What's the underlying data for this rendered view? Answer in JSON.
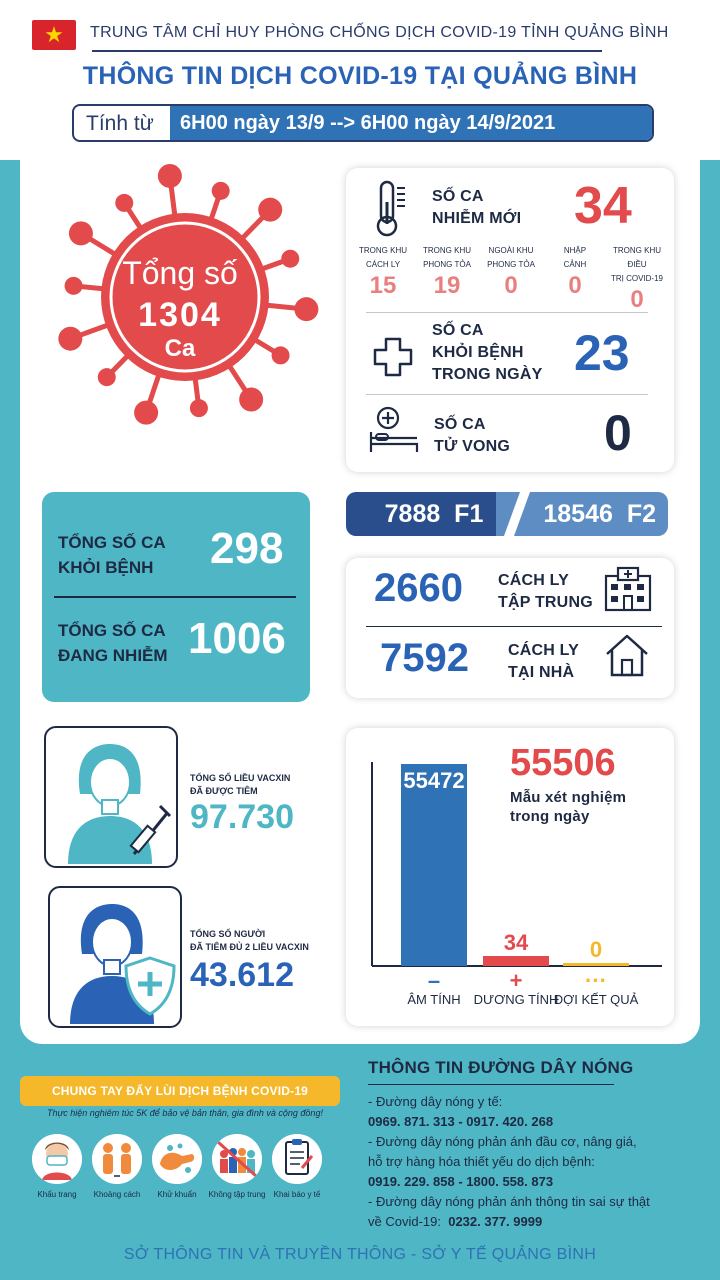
{
  "header": {
    "org": "TRUNG TÂM CHỈ HUY PHÒNG CHỐNG DỊCH COVID-19 TỈNH QUẢNG BÌNH",
    "title": "THÔNG TIN DỊCH COVID-19 TẠI QUẢNG BÌNH",
    "date_prefix": "Tính từ",
    "date_range": "6H00 ngày 13/9 --> 6H00 ngày 14/9/2021"
  },
  "total": {
    "label": "Tổng số",
    "value": "1304",
    "unit": "Ca"
  },
  "new_cases": {
    "label_line1": "SỐ CA",
    "label_line2": "NHIỄM MỚI",
    "value": "34",
    "breakdown": [
      {
        "head1": "TRONG KHU",
        "head2": "CÁCH LY",
        "value": "15"
      },
      {
        "head1": "TRONG KHU",
        "head2": "PHONG TỎA",
        "value": "19"
      },
      {
        "head1": "NGOÀI KHU",
        "head2": "PHONG TỎA",
        "value": "0"
      },
      {
        "head1": "NHẬP",
        "head2": "CẢNH",
        "value": "0"
      },
      {
        "head1": "TRONG KHU ĐIỀU",
        "head2": "TRỊ COVID-19",
        "value": "0"
      }
    ]
  },
  "recovered_today": {
    "line1": "SỐ CA",
    "line2": "KHỎI BỆNH",
    "line3": "TRONG NGÀY",
    "value": "23"
  },
  "deaths": {
    "line1": "SỐ CA",
    "line2": "TỬ VONG",
    "value": "0"
  },
  "contacts": {
    "f1_value": "7888",
    "f1_label": "F1",
    "f2_value": "18546",
    "f2_label": "F2"
  },
  "totals": {
    "recovered_line1": "TỔNG SỐ CA",
    "recovered_line2": "KHỎI BỆNH",
    "recovered_value": "298",
    "active_line1": "TỔNG SỐ CA",
    "active_line2": "ĐANG NHIỄM",
    "active_value": "1006"
  },
  "isolation": {
    "central_value": "2660",
    "central_line1": "CÁCH LY",
    "central_line2": "TẬP TRUNG",
    "home_value": "7592",
    "home_line1": "CÁCH LY",
    "home_line2": "TẠI NHÀ"
  },
  "vaccine": {
    "doses_line1": "TỔNG SỐ LIỀU VACXIN",
    "doses_line2": "ĐÃ ĐƯỢC TIÊM",
    "doses_value": "97.730",
    "full_line1": "TỔNG SỐ NGƯỜI",
    "full_line2": "ĐÃ TIÊM ĐỦ 2 LIỀU VACXIN",
    "full_value": "43.612"
  },
  "tests": {
    "total": "55506",
    "total_line1": "Mẫu xét nghiệm",
    "total_line2": "trong ngày"
  },
  "chart_data": {
    "type": "bar",
    "categories": [
      "ÂM TÍNH",
      "DƯƠNG TÍNH",
      "ĐỢI KẾT QUẢ"
    ],
    "values": [
      55472,
      34,
      0
    ],
    "symbols": [
      "–",
      "+",
      "···"
    ],
    "colors": [
      "#2f72b6",
      "#e24a4b",
      "#f5b82a"
    ]
  },
  "campaign": {
    "title": "CHUNG TAY ĐẨY LÙI DỊCH BỆNH COVID-19",
    "subtitle": "Thực hiện nghiêm túc 5K để bảo vệ bản thân, gia đình và cộng đồng!",
    "items": [
      "Khẩu trang",
      "Khoảng cách",
      "Khử khuẩn",
      "Không tập trung",
      "Khai báo y tế"
    ]
  },
  "hotline": {
    "title": "THÔNG TIN ĐƯỜNG DÂY NÓNG",
    "line1": "- Đường dây nóng y tế:",
    "line2": "0969. 871. 313   -  0917. 420. 268",
    "line3": "- Đường dây nóng phản ánh đầu cơ, nâng giá,",
    "line4": "hỗ trợ hàng hóa thiết yếu do dịch bệnh:",
    "line5": "0919. 229. 858   -  1800. 558. 873",
    "line6": "- Đường dây nóng phản ánh thông tin sai sự thật",
    "line7_prefix": "về Covid-19:",
    "line7_number": "0232. 377. 9999"
  },
  "footer": "SỞ THÔNG TIN VÀ TRUYỀN THÔNG - SỞ Y TẾ QUẢNG BÌNH"
}
